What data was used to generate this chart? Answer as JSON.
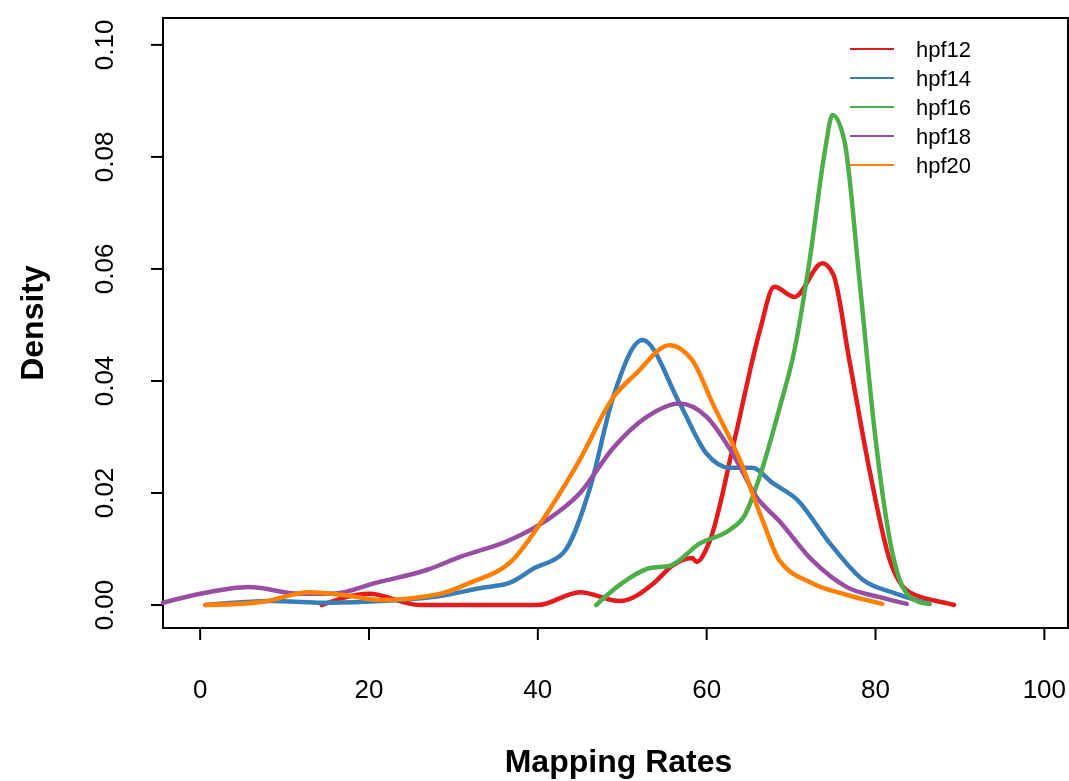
{
  "chart_data": {
    "type": "line",
    "xlabel": "Mapping Rates",
    "ylabel": "Density",
    "xlim": [
      -4.4,
      102.8
    ],
    "ylim": [
      -0.0041,
      0.1048
    ],
    "xticks": [
      0,
      20,
      40,
      60,
      80,
      100
    ],
    "yticks": [
      {
        "value": 0,
        "label": "0.00"
      },
      {
        "value": 0.02,
        "label": "0.02"
      },
      {
        "value": 0.04,
        "label": "0.04"
      },
      {
        "value": 0.06,
        "label": "0.06"
      },
      {
        "value": 0.08,
        "label": "0.08"
      },
      {
        "value": 0.1,
        "label": "0.10"
      }
    ],
    "grid": false,
    "legend": "top right",
    "marker": "none",
    "line_style": "solid",
    "series": [
      {
        "name": "hpf12",
        "color": "#e41a1c",
        "x": [
          14.4,
          20,
          26,
          40,
          45,
          49.7,
          53.8,
          55.9,
          58.3,
          58.8,
          60.4,
          63.3,
          66.3,
          68,
          70.4,
          73.7,
          75,
          76.9,
          79.3,
          81.7,
          84,
          88.8,
          89.3
        ],
        "values": [
          0,
          0.002,
          0,
          0,
          0.0023,
          0.0007,
          0.004,
          0.007,
          0.0084,
          0.0077,
          0.0116,
          0.0295,
          0.049,
          0.0568,
          0.055,
          0.061,
          0.059,
          0.0437,
          0.024,
          0.008,
          0.0023,
          0.0002,
          0
        ]
      },
      {
        "name": "hpf14",
        "color": "#377eb8",
        "x": [
          0.6,
          8.3,
          15.4,
          21.3,
          28.4,
          33.1,
          36.7,
          39.6,
          43,
          46.2,
          48.9,
          52.4,
          56.8,
          60,
          62.7,
          65.4,
          67.8,
          70.7,
          74.6,
          78.5,
          82.5,
          86.4
        ],
        "values": [
          0,
          0.0007,
          0.0004,
          0.0007,
          0.0016,
          0.003,
          0.004,
          0.0066,
          0.0093,
          0.021,
          0.037,
          0.0473,
          0.036,
          0.027,
          0.0245,
          0.0245,
          0.0218,
          0.0188,
          0.011,
          0.0045,
          0.002,
          0.0002
        ]
      },
      {
        "name": "hpf16",
        "color": "#4daf4a",
        "x": [
          46.9,
          49.7,
          53.3,
          55.6,
          59.2,
          62.7,
          64.5,
          66.3,
          68.6,
          70.4,
          72.2,
          74,
          74.9,
          76.3,
          78.1,
          79.9,
          81.7,
          83.4,
          85.2,
          86.4
        ],
        "values": [
          0,
          0.0036,
          0.0066,
          0.007,
          0.011,
          0.0134,
          0.016,
          0.023,
          0.035,
          0.0455,
          0.0616,
          0.081,
          0.0875,
          0.083,
          0.058,
          0.031,
          0.0116,
          0.0027,
          0.0005,
          0.0002
        ]
      },
      {
        "name": "hpf18",
        "color": "#984ea3",
        "x": [
          -4.4,
          0,
          5.9,
          11.8,
          15.7,
          20.9,
          26.9,
          30.8,
          36.7,
          41.1,
          45,
          48.9,
          52.9,
          56.8,
          60,
          63.1,
          65.9,
          68.6,
          72.5,
          76.6,
          80.5,
          83.7
        ],
        "values": [
          0.0004,
          0.002,
          0.0032,
          0.002,
          0.002,
          0.004,
          0.0063,
          0.0086,
          0.0116,
          0.0152,
          0.02,
          0.028,
          0.0336,
          0.036,
          0.0336,
          0.027,
          0.0193,
          0.015,
          0.008,
          0.0032,
          0.0014,
          0.0002
        ]
      },
      {
        "name": "hpf20",
        "color": "#ff7f00",
        "x": [
          0.6,
          7.1,
          13,
          17.8,
          21.3,
          28.4,
          32,
          37,
          41.1,
          45,
          48.9,
          51.7,
          55.6,
          58.3,
          60.7,
          63.9,
          66.6,
          68.6,
          72.5,
          76.6,
          80.8
        ],
        "values": [
          0,
          0.0005,
          0.0023,
          0.0016,
          0.0009,
          0.002,
          0.004,
          0.008,
          0.0164,
          0.026,
          0.037,
          0.0414,
          0.0464,
          0.0437,
          0.036,
          0.026,
          0.0152,
          0.008,
          0.0039,
          0.0018,
          0.0002
        ]
      }
    ]
  }
}
